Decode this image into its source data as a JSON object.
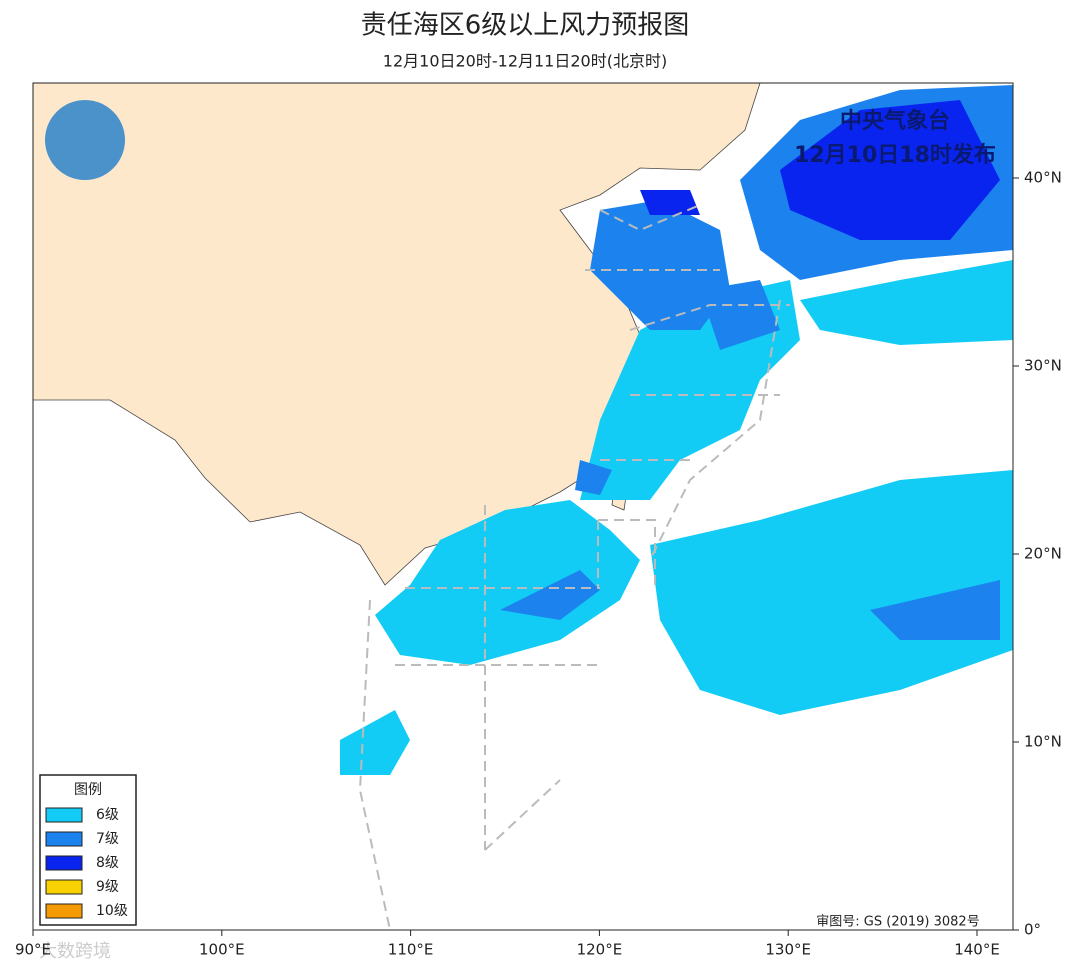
{
  "header": {
    "title": "责任海区6级以上风力预报图",
    "subtitle": "12月10日20时-12月11日20时(北京时)"
  },
  "issuer": {
    "name": "中央气象台",
    "time": "12月10日18时发布"
  },
  "legend": {
    "title": "图例",
    "items": [
      {
        "label": "6级",
        "color": "#12ccf5"
      },
      {
        "label": "7级",
        "color": "#1b82ee"
      },
      {
        "label": "8级",
        "color": "#0a24f0"
      },
      {
        "label": "9级",
        "color": "#f7d200"
      },
      {
        "label": "10级",
        "color": "#f59a00"
      }
    ]
  },
  "axes": {
    "lon_labels": [
      "90°E",
      "100°E",
      "110°E",
      "120°E",
      "130°E",
      "140°E"
    ],
    "lat_labels": [
      "0°",
      "10°N",
      "20°N",
      "30°N",
      "40°N"
    ]
  },
  "footer": {
    "approval": "审图号: GS (2019) 3082号",
    "watermark": "大数跨境"
  }
}
